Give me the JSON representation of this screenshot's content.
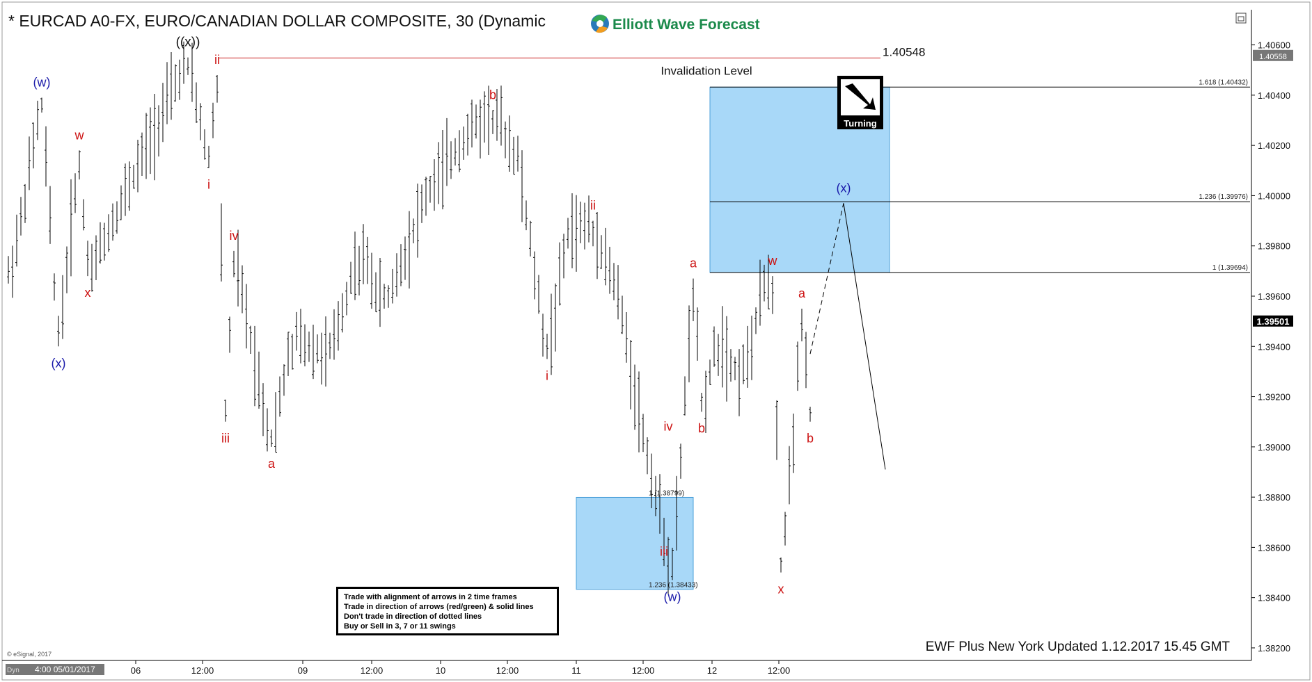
{
  "header": {
    "title": "* EURCAD A0-FX, EURO/CANADIAN DOLLAR COMPOSITE, 30 (Dynamic",
    "logo_text": "Elliott Wave Forecast"
  },
  "footer": {
    "updated": "EWF Plus New York Updated 1.12.2017 15.45 GMT",
    "copyright": "© eSignal, 2017",
    "dyn_tag": "Dyn",
    "first_date": "4:00 05/01/2017"
  },
  "signal": {
    "label": "Turning"
  },
  "rules": [
    "Trade with alignment of arrows in 2 time frames",
    "Trade in direction of arrows (red/green) & solid lines",
    "Don't trade in direction of dotted lines",
    "Buy or Sell in 3, 7 or 11 swings"
  ],
  "colors": {
    "up_bar": "#000000",
    "blue_label": "#1a1aaa",
    "red_label": "#cc1111",
    "box_fill": "#a8d8f8",
    "box_stroke": "#4a9fd8",
    "invalidation_line": "#cc2222",
    "axis_tag_bg": "#000000"
  },
  "chart_data": {
    "type": "ohlc",
    "symbol": "EURCAD",
    "interval": "30",
    "ylim": [
      1.3815,
      1.4074
    ],
    "y_ticks": [
      "1.40600",
      "1.40400",
      "1.40200",
      "1.40000",
      "1.39800",
      "1.39600",
      "1.39400",
      "1.39200",
      "1.39000",
      "1.38800",
      "1.38600",
      "1.38400",
      "1.38200"
    ],
    "x_ticks": [
      "06",
      "12:00",
      "09",
      "12:00",
      "10",
      "12:00",
      "11",
      "12:00",
      "12",
      "12:00"
    ],
    "price_tags": [
      {
        "label": "1.40558",
        "value": 1.40558,
        "style": "gray"
      },
      {
        "label": "1.39501",
        "value": 1.39501,
        "style": "black"
      }
    ],
    "invalidation": {
      "value_label": "1.40548",
      "value": 1.40548,
      "text": "Invalidation Level"
    },
    "fib_levels": [
      {
        "label": "1.618 (1.40432)",
        "value": 1.40432
      },
      {
        "label": "1.236 (1.39976)",
        "value": 1.39976
      },
      {
        "label": "1 (1.39694)",
        "value": 1.39694
      },
      {
        "label": "1 (1.38799)",
        "value": 1.38799
      },
      {
        "label": "1.236 (1.38433)",
        "value": 1.38433
      }
    ],
    "target_zones": [
      {
        "name": "upper",
        "top": 1.40432,
        "bottom": 1.39694,
        "t0": 168,
        "t1": 211
      },
      {
        "name": "lower",
        "top": 1.38799,
        "bottom": 1.38433,
        "t0": 136,
        "t1": 164
      }
    ],
    "waves": [
      {
        "label": "(w)",
        "t": 8,
        "v": 1.4039,
        "color": "blue",
        "pos": "above"
      },
      {
        "label": "(x)",
        "t": 12,
        "v": 1.394,
        "color": "blue",
        "pos": "below"
      },
      {
        "label": "w",
        "t": 17,
        "v": 1.4018,
        "color": "red",
        "pos": "above"
      },
      {
        "label": "x",
        "t": 19,
        "v": 1.3968,
        "color": "red",
        "pos": "below"
      },
      {
        "label": "((x))",
        "t": 43,
        "v": 1.4055,
        "color": "black",
        "pos": "above"
      },
      {
        "label": "ii",
        "t": 50,
        "v": 1.4048,
        "color": "red",
        "pos": "above"
      },
      {
        "label": "i",
        "t": 48,
        "v": 1.4011,
        "color": "red",
        "pos": "below"
      },
      {
        "label": "iii",
        "t": 52,
        "v": 1.391,
        "color": "red",
        "pos": "below"
      },
      {
        "label": "iv",
        "t": 54,
        "v": 1.3978,
        "color": "red",
        "pos": "above"
      },
      {
        "label": "a",
        "t": 63,
        "v": 1.39,
        "color": "red",
        "pos": "below"
      },
      {
        "label": "b",
        "t": 116,
        "v": 1.4034,
        "color": "red",
        "pos": "above"
      },
      {
        "label": "ii",
        "t": 140,
        "v": 1.399,
        "color": "red",
        "pos": "above"
      },
      {
        "label": "i",
        "t": 129,
        "v": 1.3935,
        "color": "red",
        "pos": "below"
      },
      {
        "label": "iv",
        "t": 158,
        "v": 1.3902,
        "color": "red",
        "pos": "above"
      },
      {
        "label": "iii",
        "t": 157,
        "v": 1.3865,
        "color": "red",
        "pos": "below"
      },
      {
        "label": "(w)",
        "t": 159,
        "v": 1.3847,
        "color": "blue",
        "pos": "below"
      },
      {
        "label": "a",
        "t": 164,
        "v": 1.3967,
        "color": "red",
        "pos": "above"
      },
      {
        "label": "b",
        "t": 166,
        "v": 1.3914,
        "color": "red",
        "pos": "below"
      },
      {
        "label": "w",
        "t": 183,
        "v": 1.3968,
        "color": "red",
        "pos": "above"
      },
      {
        "label": "x",
        "t": 185,
        "v": 1.385,
        "color": "red",
        "pos": "below"
      },
      {
        "label": "a",
        "t": 190,
        "v": 1.3955,
        "color": "red",
        "pos": "above"
      },
      {
        "label": "b",
        "t": 192,
        "v": 1.391,
        "color": "red",
        "pos": "below"
      },
      {
        "label": "(x)",
        "t": 200,
        "v": 1.3997,
        "color": "blue",
        "pos": "above"
      }
    ],
    "projection": {
      "dashed": [
        [
          192,
          1.3937
        ],
        [
          200,
          1.3997
        ]
      ],
      "solid": [
        [
          200,
          1.3997
        ],
        [
          210,
          1.3891
        ]
      ]
    },
    "anchors": [
      [
        0,
        1.3965
      ],
      [
        3,
        1.399
      ],
      [
        8,
        1.4039
      ],
      [
        12,
        1.394
      ],
      [
        17,
        1.4018
      ],
      [
        19,
        1.3968
      ],
      [
        43,
        1.4055
      ],
      [
        48,
        1.4011
      ],
      [
        50,
        1.4048
      ],
      [
        52,
        1.391
      ],
      [
        54,
        1.3978
      ],
      [
        63,
        1.39
      ],
      [
        68,
        1.3945
      ],
      [
        77,
        1.3935
      ],
      [
        84,
        1.398
      ],
      [
        90,
        1.3955
      ],
      [
        100,
        1.4
      ],
      [
        110,
        1.4025
      ],
      [
        116,
        1.4034
      ],
      [
        122,
        1.4015
      ],
      [
        129,
        1.3935
      ],
      [
        134,
        1.3985
      ],
      [
        140,
        1.399
      ],
      [
        146,
        1.396
      ],
      [
        152,
        1.3905
      ],
      [
        157,
        1.3865
      ],
      [
        159,
        1.3847
      ],
      [
        164,
        1.3967
      ],
      [
        166,
        1.3914
      ],
      [
        170,
        1.3945
      ],
      [
        176,
        1.3925
      ],
      [
        181,
        1.3965
      ],
      [
        183,
        1.3968
      ],
      [
        185,
        1.385
      ],
      [
        188,
        1.3905
      ],
      [
        190,
        1.3955
      ],
      [
        192,
        1.391
      ]
    ],
    "bar_count": 193
  }
}
